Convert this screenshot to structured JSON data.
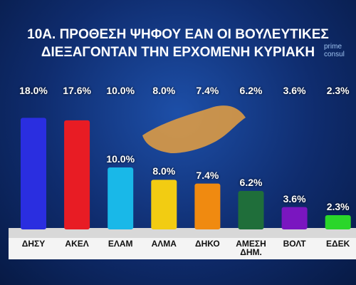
{
  "chart_data": {
    "type": "bar",
    "title": "10Α. ΠΡΟΘΕΣΗ ΨΗΦΟΥ ΕΑΝ ΟΙ ΒΟΥΛΕΥΤΙΚΕΣ ΔΙΕΞΑΓΟΝΤΑΝ ΤΗΝ ΕΡΧΟΜΕΝΗ ΚΥΡΙΑΚΗ",
    "logo": [
      "prime",
      "consul"
    ],
    "categories": [
      "ΔΗΣΥ",
      "ΑΚΕΛ",
      "ΕΛΑΜ",
      "ΑΛΜΑ",
      "ΔΗΚΟ",
      "ΑΜΕΣΗ ΔΗΜ.",
      "ΒΟΛΤ",
      "ΕΔΕΚ"
    ],
    "values": [
      18.0,
      17.6,
      10.0,
      8.0,
      7.4,
      6.2,
      3.6,
      2.3
    ],
    "value_labels": [
      "18.0%",
      "17.6%",
      "10.0%",
      "8.0%",
      "7.4%",
      "6.2%",
      "3.6%",
      "2.3%"
    ],
    "colors": [
      "#2a2ee0",
      "#e81c24",
      "#19b8e8",
      "#f2cc12",
      "#f08a10",
      "#1f6e3a",
      "#7a16c0",
      "#2ad62a"
    ]
  }
}
